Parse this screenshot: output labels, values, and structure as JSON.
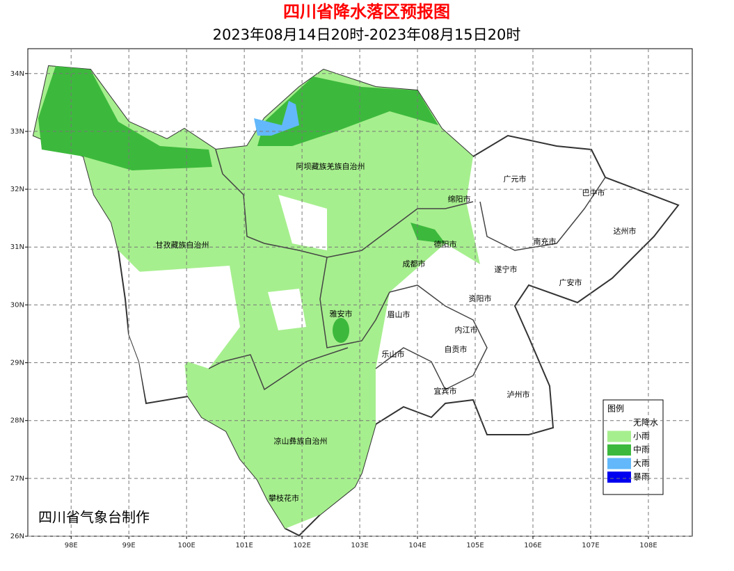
{
  "header": {
    "title": "四川省降水落区预报图",
    "subtitle": "2023年08月14日20时-2023年08月15日20时"
  },
  "map": {
    "xlim": [
      97.25,
      108.76
    ],
    "ylim": [
      26,
      34.43
    ],
    "grid": true,
    "xticks": [
      {
        "value": 98,
        "label": "98E"
      },
      {
        "value": 99,
        "label": "99E"
      },
      {
        "value": 100,
        "label": "100E"
      },
      {
        "value": 101,
        "label": "101E"
      },
      {
        "value": 102,
        "label": "102E"
      },
      {
        "value": 103,
        "label": "103E"
      },
      {
        "value": 104,
        "label": "104E"
      },
      {
        "value": 105,
        "label": "105E"
      },
      {
        "value": 106,
        "label": "106E"
      },
      {
        "value": 107,
        "label": "107E"
      },
      {
        "value": 108,
        "label": "108E"
      }
    ],
    "yticks": [
      {
        "value": 26,
        "label": "26N"
      },
      {
        "value": 27,
        "label": "27N"
      },
      {
        "value": 28,
        "label": "28N"
      },
      {
        "value": 29,
        "label": "29N"
      },
      {
        "value": 30,
        "label": "30N"
      },
      {
        "value": 31,
        "label": "31N"
      },
      {
        "value": 32,
        "label": "32N"
      },
      {
        "value": 33,
        "label": "33N"
      },
      {
        "value": 34,
        "label": "34N"
      }
    ]
  },
  "places": [
    "阿坝藏族羌族自治州",
    "甘孜藏族自治州",
    "广元市",
    "巴中市",
    "绵阳市",
    "达州市",
    "南充市",
    "德阳市",
    "成都市",
    "遂宁市",
    "广安市",
    "资阳市",
    "雅安市",
    "眉山市",
    "内江市",
    "自贡市",
    "乐山市",
    "宜宾市",
    "泸州市",
    "凉山彝族自治州",
    "攀枝花市"
  ],
  "legend": {
    "title": "图例",
    "items": [
      {
        "label": "无降水",
        "color": "#ffffff"
      },
      {
        "label": "小雨",
        "color": "#a6ef8e"
      },
      {
        "label": "中雨",
        "color": "#3cb93c"
      },
      {
        "label": "大雨",
        "color": "#62b8fa"
      },
      {
        "label": "暴雨",
        "color": "#0000f0"
      }
    ]
  },
  "credit": "四川省气象台制作"
}
